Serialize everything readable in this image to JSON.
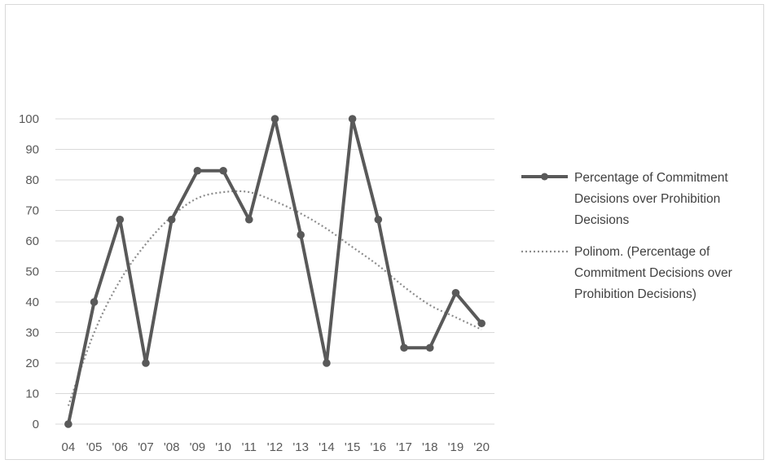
{
  "chart_data": {
    "type": "line",
    "title": "",
    "xlabel": "",
    "ylabel": "",
    "categories": [
      "04",
      "'05",
      "'06",
      "'07",
      "'08",
      "'09",
      "'10",
      "'11",
      "'12",
      "'13",
      "'14",
      "'15",
      "'16",
      "'17",
      "'18",
      "'19",
      "'20"
    ],
    "yticks": [
      "0",
      "10",
      "20",
      "30",
      "40",
      "50",
      "60",
      "70",
      "80",
      "90",
      "100"
    ],
    "ylim": [
      0,
      100
    ],
    "grid": "horizontal",
    "legend_position": "right",
    "series": [
      {
        "name": "Percentage of Commitment Decisions over Prohibition Decisions",
        "legend_lines": [
          "Percentage of Commitment",
          "Decisions over Prohibition",
          "Decisions"
        ],
        "style": "solid-markers",
        "color": "#595959",
        "values": [
          0,
          40,
          67,
          20,
          67,
          83,
          83,
          67,
          100,
          62,
          20,
          100,
          67,
          25,
          25,
          43,
          33
        ]
      },
      {
        "name": "Polinom. (Percentage of Commitment Decisions over Prohibition Decisions)",
        "legend_lines": [
          "Polinom. (Percentage of",
          "Commitment Decisions over",
          "Prohibition Decisions)"
        ],
        "style": "dotted",
        "color": "#8c8c8c",
        "values": [
          6,
          30,
          47,
          59,
          68,
          74,
          76,
          76,
          73,
          69,
          64,
          58,
          52,
          45,
          39,
          35,
          31
        ]
      }
    ]
  }
}
